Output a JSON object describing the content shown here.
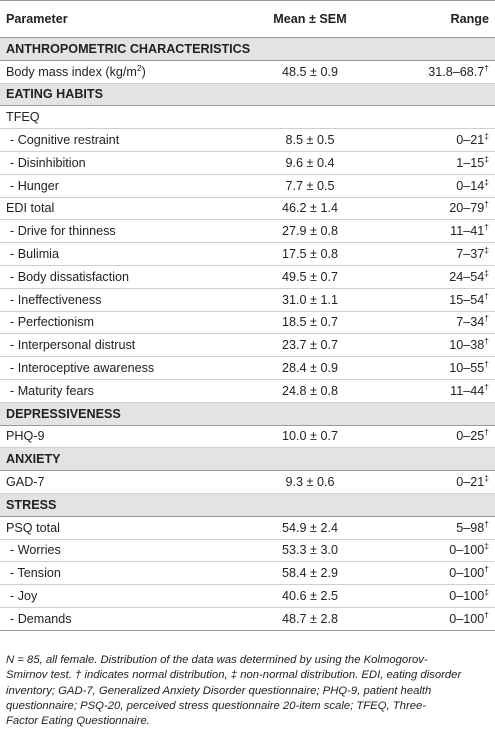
{
  "header": {
    "parameter": "Parameter",
    "mean": "Mean ± SEM",
    "range": "Range"
  },
  "rows": [
    {
      "type": "section",
      "label": "ANTHROPOMETRIC CHARACTERISTICS"
    },
    {
      "type": "row",
      "label": "Body mass index (kg/m",
      "label_sup": "2",
      "label_tail": ")",
      "mean": "48.5 ± 0.9",
      "range": "31.8–68.7",
      "mark": "†"
    },
    {
      "type": "section",
      "label": "EATING HABITS"
    },
    {
      "type": "row",
      "label": "TFEQ",
      "mean": "",
      "range": "",
      "mark": ""
    },
    {
      "type": "row",
      "label": "- Cognitive restraint",
      "indent": true,
      "mean": "8.5 ± 0.5",
      "range": "0–21",
      "mark": "‡"
    },
    {
      "type": "row",
      "label": "- Disinhibition",
      "indent": true,
      "mean": "9.6 ± 0.4",
      "range": "1–15",
      "mark": "‡"
    },
    {
      "type": "row",
      "label": "- Hunger",
      "indent": true,
      "mean": "7.7 ± 0.5",
      "range": "0–14",
      "mark": "‡"
    },
    {
      "type": "row",
      "label": "EDI total",
      "mean": "46.2 ± 1.4",
      "range": "20–79",
      "mark": "†"
    },
    {
      "type": "row",
      "label": "- Drive for thinness",
      "indent": true,
      "mean": "27.9 ± 0.8",
      "range": "11–41",
      "mark": "†"
    },
    {
      "type": "row",
      "label": "- Bulimia",
      "indent": true,
      "mean": "17.5 ± 0.8",
      "range": "7–37",
      "mark": "‡"
    },
    {
      "type": "row",
      "label": "- Body dissatisfaction",
      "indent": true,
      "mean": "49.5 ± 0.7",
      "range": "24–54",
      "mark": "‡"
    },
    {
      "type": "row",
      "label": "- Ineffectiveness",
      "indent": true,
      "mean": "31.0 ± 1.1",
      "range": "15–54",
      "mark": "†"
    },
    {
      "type": "row",
      "label": "- Perfectionism",
      "indent": true,
      "mean": "18.5 ± 0.7",
      "range": "7–34",
      "mark": "†"
    },
    {
      "type": "row",
      "label": "- Interpersonal distrust",
      "indent": true,
      "mean": "23.7 ± 0.7",
      "range": "10–38",
      "mark": "†"
    },
    {
      "type": "row",
      "label": "- Interoceptive awareness",
      "indent": true,
      "mean": "28.4 ± 0.9",
      "range": "10–55",
      "mark": "†"
    },
    {
      "type": "row",
      "label": "- Maturity fears",
      "indent": true,
      "mean": "24.8 ± 0.8",
      "range": "11–44",
      "mark": "†"
    },
    {
      "type": "section",
      "label": "DEPRESSIVENESS"
    },
    {
      "type": "row",
      "label": "PHQ-9",
      "mean": "10.0 ± 0.7",
      "range": "0–25",
      "mark": "†"
    },
    {
      "type": "section",
      "label": "ANXIETY"
    },
    {
      "type": "row",
      "label": "GAD-7",
      "mean": "9.3 ± 0.6",
      "range": "0–21",
      "mark": "‡"
    },
    {
      "type": "section",
      "label": "STRESS"
    },
    {
      "type": "row",
      "label": "PSQ total",
      "mean": "54.9 ± 2.4",
      "range": "5–98",
      "mark": "†"
    },
    {
      "type": "row",
      "label": "- Worries",
      "indent": true,
      "mean": "53.3 ± 3.0",
      "range": "0–100",
      "mark": "‡"
    },
    {
      "type": "row",
      "label": "- Tension",
      "indent": true,
      "mean": "58.4 ± 2.9",
      "range": "0–100",
      "mark": "†"
    },
    {
      "type": "row",
      "label": "- Joy",
      "indent": true,
      "mean": "40.6 ± 2.5",
      "range": "0–100",
      "mark": "‡"
    },
    {
      "type": "row",
      "label": "- Demands",
      "indent": true,
      "mean": "48.7 ± 2.8",
      "range": "0–100",
      "mark": "†",
      "last": true
    }
  ],
  "footnote": {
    "lines": [
      "N = 85, all female. Distribution of the data was determined by using the Kolmogorov-",
      "Smirnov test. † indicates normal distribution, ‡ non-normal distribution. EDI, eating disorder",
      "inventory; GAD-7, Generalized Anxiety Disorder questionnaire; PHQ-9, patient health",
      "questionnaire; PSQ-20, perceived stress questionnaire 20-item scale; TFEQ, Three-",
      "Factor Eating Questionnaire."
    ]
  }
}
